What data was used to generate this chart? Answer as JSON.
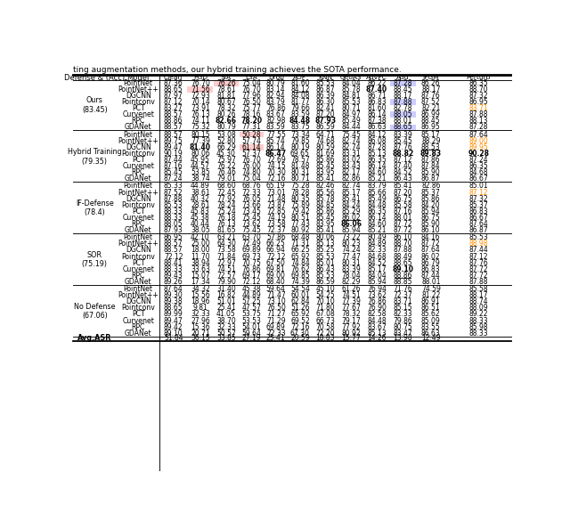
{
  "title_text": "ting augmentation methods, our hybrid training achieves the SOTA performance.",
  "headers": [
    "Defense & (Acc)",
    "Model",
    "Clean",
    "PGD",
    "SIA",
    "L3A",
    "Drop",
    "AOF",
    "KNN",
    "GeoA3",
    "AdvPC",
    "Add",
    "IFGM",
    "Perturb"
  ],
  "sections": [
    {
      "defense": "Ours\n(83.45)",
      "rows": [
        [
          "PointNet",
          "87.36",
          "76.70",
          "76.26",
          "75.04",
          "80.79",
          "81.60",
          "85.53",
          "84.04",
          "86.22",
          "87.28",
          "86.26",
          "86.35"
        ],
        [
          "PointNet++",
          "88.65",
          "71.56",
          "78.61",
          "76.70",
          "83.14",
          "84.12",
          "86.87",
          "85.78",
          "87.40",
          "88.45",
          "88.17",
          "88.70"
        ],
        [
          "DGCNN",
          "87.97",
          "72.93",
          "81.81",
          "77.96",
          "82.94",
          "84.08",
          "86.39",
          "84.81",
          "86.71",
          "88.17",
          "87.76",
          "87.32"
        ],
        [
          "Pointconv",
          "87.12",
          "70.14",
          "80.67",
          "76.50",
          "83.79",
          "81.77",
          "86.30",
          "85.53",
          "86.83",
          "87.88",
          "87.52",
          "86.95"
        ],
        [
          "PCT",
          "83.27",
          "73.91",
          "78.32",
          "75.77",
          "76.86",
          "79.66",
          "82.41",
          "80.71",
          "81.60",
          "82.78",
          "82.21",
          "83.71"
        ],
        [
          "Curvenet",
          "88.57",
          "76.13",
          "80.26",
          "78.16",
          "83.67",
          "83.59",
          "87.20",
          "84.97",
          "86.14",
          "88.05",
          "86.99",
          "87.88"
        ],
        [
          "RPC",
          "88.86",
          "74.11",
          "82.66",
          "78.20",
          "82.98",
          "84.48",
          "87.93",
          "85.49",
          "87.38",
          "88.01",
          "88.45",
          "88.13"
        ],
        [
          "GDANet",
          "88.57",
          "75.32",
          "80.79",
          "77.31",
          "83.59",
          "83.75",
          "86.59",
          "84.44",
          "86.63",
          "88.65",
          "86.95",
          "87.28"
        ]
      ],
      "special": [
        {
          "row": 0,
          "col": 3,
          "type": "pink"
        },
        {
          "row": 1,
          "col": 2,
          "type": "pink"
        },
        {
          "row": 2,
          "col": 3,
          "type": "underline"
        },
        {
          "row": 1,
          "col": 6,
          "type": "underline"
        },
        {
          "row": 1,
          "col": 9,
          "type": "bold"
        },
        {
          "row": 6,
          "col": 3,
          "type": "bold"
        },
        {
          "row": 6,
          "col": 4,
          "type": "bold"
        },
        {
          "row": 6,
          "col": 6,
          "type": "bold"
        },
        {
          "row": 6,
          "col": 7,
          "type": "bold"
        },
        {
          "row": 6,
          "col": 9,
          "type": "underline"
        },
        {
          "row": 5,
          "col": 7,
          "type": "underline"
        },
        {
          "row": 0,
          "col": 10,
          "type": "blue_bg"
        },
        {
          "row": 3,
          "col": 10,
          "type": "blue_bg"
        },
        {
          "row": 5,
          "col": 10,
          "type": "blue_bg"
        },
        {
          "row": 7,
          "col": 10,
          "type": "blue_bg"
        },
        {
          "row": 4,
          "col": 12,
          "type": "orange"
        }
      ]
    },
    {
      "defense": "Hybrid Training\n(79.35)",
      "rows": [
        [
          "PointNet",
          "88.57",
          "80.15",
          "53.08",
          "50.28",
          "77.55",
          "73.34",
          "64.71",
          "75.45",
          "84.12",
          "83.39",
          "85.17",
          "87.64"
        ],
        [
          "PointNet++",
          "89.75",
          "77.39",
          "52.80",
          "57.74",
          "85.74",
          "79.85",
          "74.68",
          "82.74",
          "86.08",
          "85.45",
          "88.29",
          "89.00"
        ],
        [
          "DGCNN",
          "89.47",
          "81.40",
          "66.29",
          "61.14",
          "86.14",
          "80.19",
          "80.59",
          "82.74",
          "87.28",
          "87.76",
          "88.53",
          "89.95"
        ],
        [
          "Pointconv",
          "90.19",
          "80.06",
          "45.30",
          "57.37",
          "86.47",
          "69.65",
          "81.69",
          "83.31",
          "85.13",
          "88.82",
          "89.83",
          "90.28"
        ],
        [
          "PCT",
          "87.44",
          "45.95",
          "75.97",
          "76.70",
          "72.69",
          "78.57",
          "85.86",
          "83.02",
          "86.35",
          "87.12",
          "87.86",
          "87.24"
        ],
        [
          "Curvenet",
          "87.16",
          "44.57",
          "76.22",
          "76.00",
          "74.15",
          "81.48",
          "85.45",
          "83.43",
          "86.14",
          "87.40",
          "87.84",
          "86.35"
        ],
        [
          "RPC",
          "85.45",
          "53.85",
          "76.46",
          "74.80",
          "70.30",
          "80.31",
          "83.95",
          "82.17",
          "84.60",
          "84.52",
          "85.90",
          "84.68"
        ],
        [
          "GDANet",
          "87.24",
          "38.74",
          "79.01",
          "75.04",
          "72.16",
          "80.71",
          "85.41",
          "82.86",
          "85.21",
          "86.43",
          "86.87",
          "86.67"
        ]
      ],
      "special": [
        {
          "row": 0,
          "col": 4,
          "type": "pink"
        },
        {
          "row": 0,
          "col": 2,
          "type": "underline"
        },
        {
          "row": 2,
          "col": 2,
          "type": "bold"
        },
        {
          "row": 2,
          "col": 4,
          "type": "pink"
        },
        {
          "row": 2,
          "col": 5,
          "type": "underline"
        },
        {
          "row": 3,
          "col": 5,
          "type": "bold"
        },
        {
          "row": 3,
          "col": 10,
          "type": "bold"
        },
        {
          "row": 3,
          "col": 11,
          "type": "bold"
        },
        {
          "row": 3,
          "col": 12,
          "type": "bold"
        },
        {
          "row": 2,
          "col": 11,
          "type": "underline"
        },
        {
          "row": 2,
          "col": 12,
          "type": "orange"
        },
        {
          "row": 1,
          "col": 12,
          "type": "orange"
        }
      ]
    },
    {
      "defense": "IF-Defense\n(78.4)",
      "rows": [
        [
          "PointNet",
          "85.33",
          "44.89",
          "68.60",
          "68.76",
          "65.19",
          "75.28",
          "82.46",
          "82.74",
          "83.79",
          "85.41",
          "82.86",
          "85.01"
        ],
        [
          "PointNet++",
          "87.52",
          "38.61",
          "72.45",
          "72.33",
          "73.01",
          "78.28",
          "85.56",
          "85.17",
          "85.66",
          "87.20",
          "85.37",
          "87.12"
        ],
        [
          "DGCNN",
          "87.88",
          "40.32",
          "77.92",
          "76.05",
          "71.48",
          "80.35",
          "85.78",
          "85.41",
          "85.49",
          "86.75",
          "85.86",
          "87.32"
        ],
        [
          "Pointconv",
          "85.53",
          "28.61",
          "78.24",
          "73.66",
          "73.87",
          "75.89",
          "84.85",
          "84.24",
          "84.48",
          "85.58",
          "84.20",
          "85.37"
        ],
        [
          "PCT",
          "88.33",
          "45.83",
          "75.24",
          "73.45",
          "72.85",
          "79.42",
          "85.86",
          "85.29",
          "86.35",
          "87.16",
          "85.94",
          "86.83"
        ],
        [
          "Curvenet",
          "88.33",
          "45.38",
          "76.18",
          "75.45",
          "74.19",
          "80.51",
          "85.45",
          "86.02",
          "86.14",
          "88.01",
          "86.75",
          "86.67"
        ],
        [
          "RPC",
          "88.05",
          "40.44",
          "76.13",
          "73.62",
          "73.58",
          "77.43",
          "83.95",
          "86.06",
          "84.60",
          "87.72",
          "85.90",
          "87.64"
        ],
        [
          "GDANet",
          "87.93",
          "38.05",
          "81.65",
          "75.45",
          "72.37",
          "80.92",
          "85.41",
          "85.94",
          "85.21",
          "87.72",
          "86.10",
          "86.87"
        ]
      ],
      "special": [
        {
          "row": 5,
          "col": 8,
          "type": "underline"
        },
        {
          "row": 6,
          "col": 8,
          "type": "bold"
        },
        {
          "row": 1,
          "col": 12,
          "type": "orange"
        }
      ]
    },
    {
      "defense": "SOR\n(75.19)",
      "rows": [
        [
          "PointNet",
          "86.95",
          "42.10",
          "63.21",
          "63.70",
          "57.86",
          "68.48",
          "80.06",
          "73.22",
          "80.49",
          "86.10",
          "84.16",
          "85.53"
        ],
        [
          "PointNet++",
          "88.57",
          "25.00",
          "64.30",
          "72.49",
          "66.25",
          "71.31",
          "85.13",
          "80.23",
          "84.89",
          "88.70",
          "87.72",
          "88.98"
        ],
        [
          "DGCNN",
          "88.57",
          "18.00",
          "73.58",
          "69.89",
          "66.94",
          "66.25",
          "85.25",
          "74.24",
          "82.33",
          "87.88",
          "87.64",
          "87.44"
        ],
        [
          "Pointconv",
          "72.12",
          "11.70",
          "71.84",
          "69.73",
          "72.12",
          "65.92",
          "85.53",
          "77.47",
          "84.68",
          "88.49",
          "86.02",
          "87.12"
        ],
        [
          "PCT",
          "88.41",
          "38.94",
          "72.97",
          "70.75",
          "67.50",
          "74.84",
          "85.01",
          "80.31",
          "84.52",
          "88.65",
          "86.79",
          "87.76"
        ],
        [
          "Curvenet",
          "88.33",
          "33.63",
          "74.51",
          "76.86",
          "69.81",
          "76.62",
          "86.43",
          "83.39",
          "85.17",
          "89.10",
          "86.83",
          "87.72"
        ],
        [
          "RPC",
          "89.43",
          "15.07",
          "72.57",
          "69.17",
          "69.00",
          "69.85",
          "85.53",
          "78.04",
          "84.04",
          "88.86",
          "87.44",
          "87.72"
        ],
        [
          "GDANet",
          "89.26",
          "17.34",
          "79.90",
          "72.12",
          "68.40",
          "74.39",
          "86.59",
          "82.29",
          "85.94",
          "88.85",
          "88.01",
          "87.88"
        ]
      ],
      "special": [
        {
          "row": 5,
          "col": 10,
          "type": "bold"
        },
        {
          "row": 6,
          "col": 10,
          "type": "underline"
        },
        {
          "row": 1,
          "col": 12,
          "type": "orange"
        }
      ]
    },
    {
      "defense": "No Defense\n(67.06)",
      "rows": [
        [
          "PointNet",
          "87.64",
          "34.32",
          "31.40",
          "45.38",
          "59.64",
          "54.54",
          "45.10",
          "61.26",
          "76.94",
          "71.76",
          "74.59",
          "85.58"
        ],
        [
          "PointNet++",
          "89.30",
          "15.56",
          "16.82",
          "44.89",
          "71.47",
          "60.01",
          "54.25",
          "74.51",
          "73.62",
          "72.37",
          "81.22",
          "88.17"
        ],
        [
          "DGCNN",
          "89.38",
          "18.96",
          "51.01",
          "57.25",
          "73.10",
          "62.84",
          "70.10",
          "77.39",
          "76.86",
          "83.71",
          "86.91",
          "88.74"
        ],
        [
          "Pointconv",
          "88.65",
          "9.81",
          "25.41",
          "47.57",
          "76.50",
          "51.26",
          "71.80",
          "77.67",
          "76.90",
          "85.15",
          "86.51",
          "88.09"
        ],
        [
          "PCT",
          "89.99",
          "32.33",
          "41.05",
          "53.75",
          "71.27",
          "65.92",
          "67.08",
          "78.32",
          "82.58",
          "82.33",
          "85.62",
          "89.22"
        ],
        [
          "Curvenet",
          "89.47",
          "27.96",
          "38.70",
          "53.53",
          "71.29",
          "69.52",
          "66.73",
          "79.17",
          "84.48",
          "79.86",
          "85.09",
          "88.33"
        ],
        [
          "RPC",
          "89.42",
          "15.36",
          "32.33",
          "54.01",
          "69.89",
          "72.16",
          "70.58",
          "77.92",
          "83.67",
          "80.75",
          "83.55",
          "85.98"
        ],
        [
          "GDANet",
          "89.10",
          "20.71",
          "50.57",
          "59.64",
          "72.33",
          "67.30",
          "72.20",
          "80.92",
          "85.13",
          "83.47",
          "86.63",
          "88.33"
        ]
      ],
      "special": []
    }
  ],
  "avg_asr_row": [
    "-",
    "51.84",
    "36.15",
    "33.85",
    "27.19",
    "25.41",
    "20.59",
    "18.83",
    "15.77",
    "14.26",
    "13.98",
    "12.49"
  ],
  "bg_color": "#ffffff",
  "pink_color": "#ffcccc",
  "blue_bg_color": "#ccccff",
  "orange_color": "#ff8c00"
}
